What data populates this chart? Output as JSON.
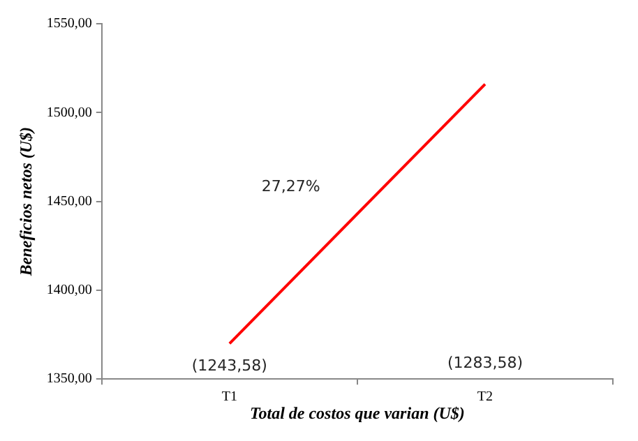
{
  "chart_data": {
    "type": "line",
    "xlabel": "Total de costos que varian (U$)",
    "ylabel": "Beneficios netos (U$)",
    "categories": [
      "T1",
      "T2"
    ],
    "series": [
      {
        "color": "#ff0000",
        "values": [
          1370,
          1516
        ]
      }
    ],
    "ylim": [
      1350,
      1550
    ],
    "yticks": [
      {
        "value": 1350,
        "label": "1350,00"
      },
      {
        "value": 1400,
        "label": "1400,00"
      },
      {
        "value": 1450,
        "label": "1450,00"
      },
      {
        "value": 1500,
        "label": "1500,00"
      },
      {
        "value": 1550,
        "label": "1550,00"
      }
    ],
    "annotations": [
      "(1243,58)",
      "(1283,58)",
      "27,27%"
    ],
    "grid": false,
    "legend": false,
    "marker": "none",
    "line_style": "solid"
  }
}
